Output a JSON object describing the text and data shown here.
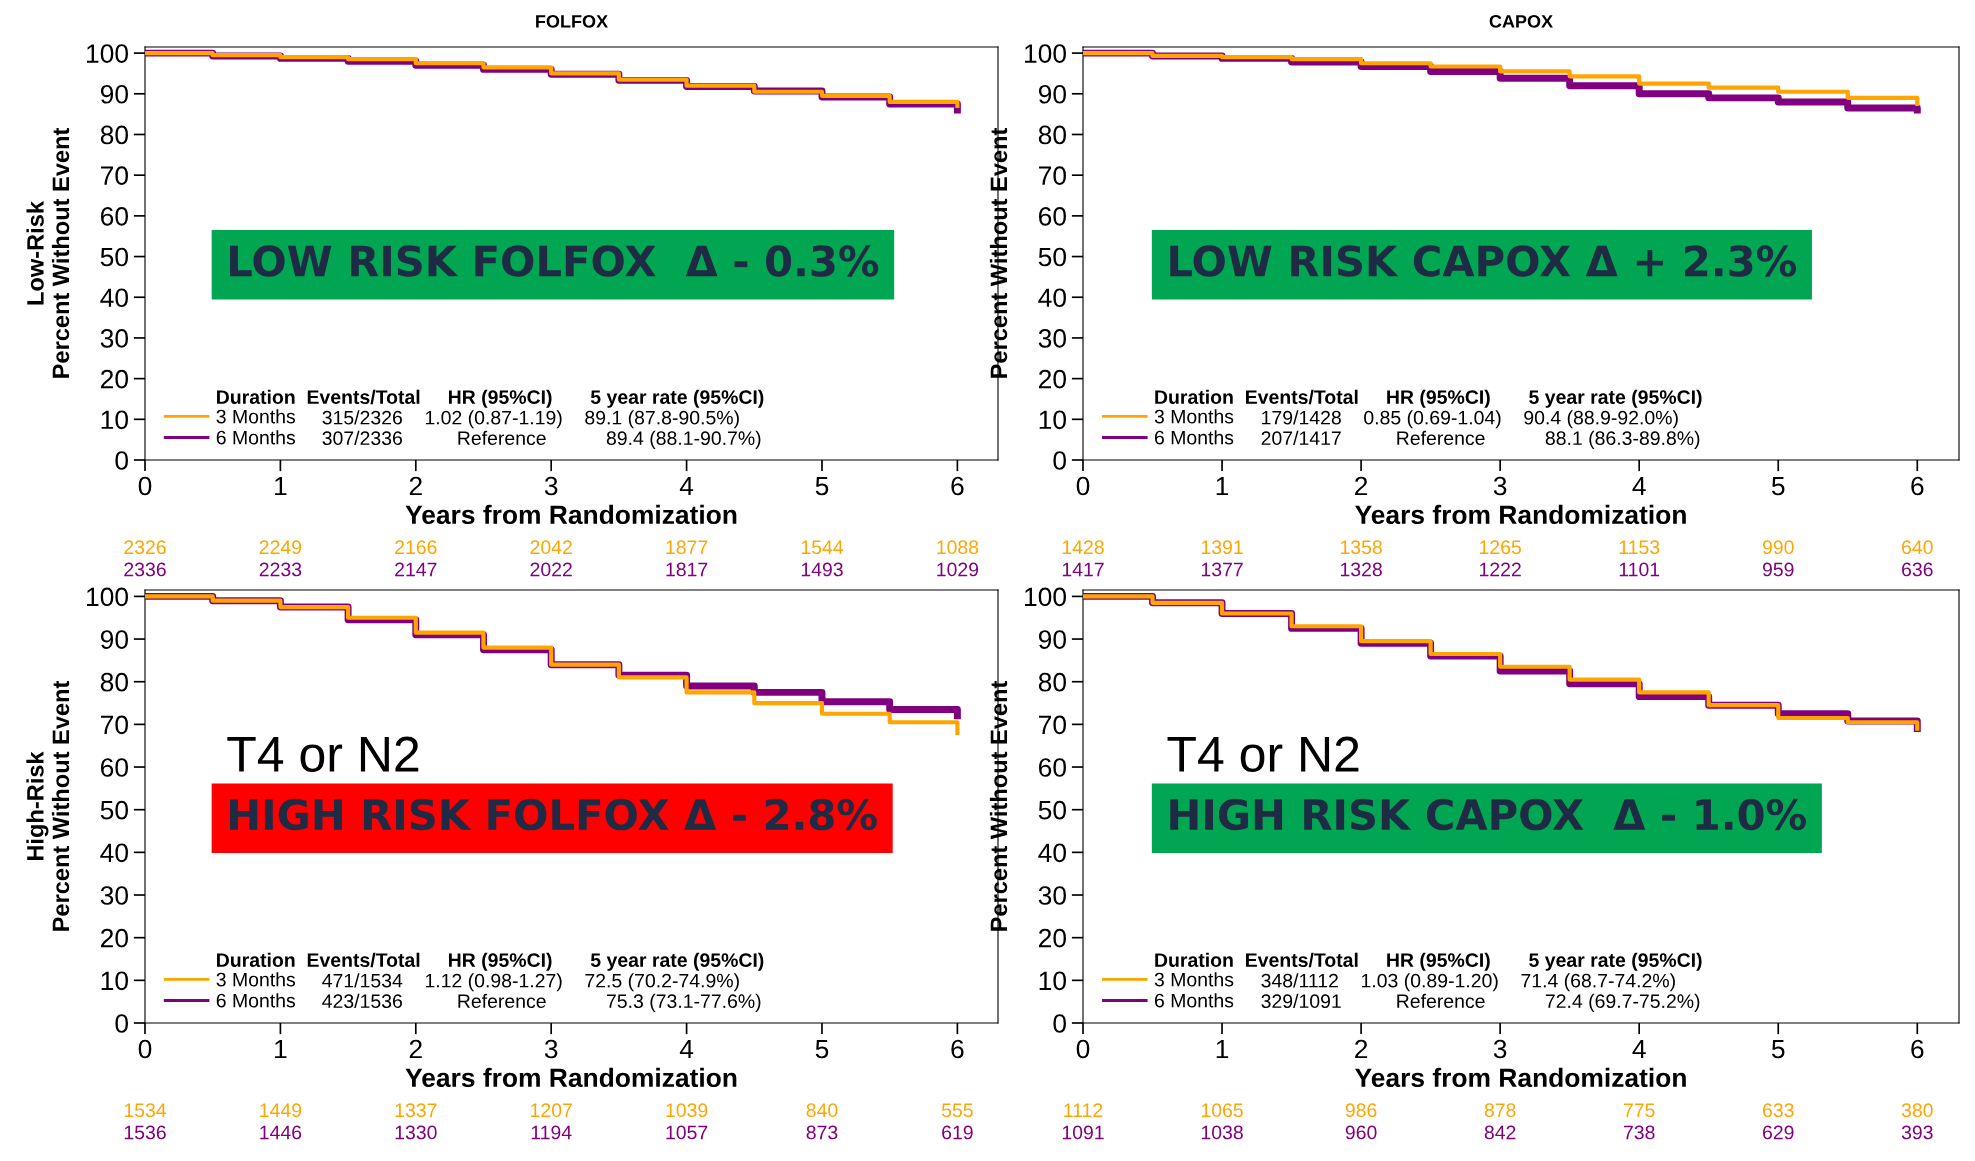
{
  "chart_data": [
    {
      "type": "step",
      "title": "FOLFOX",
      "ylabel": "Low-Risk\nPercent Without Event",
      "xlabel": "Years from Randomization",
      "x": [
        0,
        0.5,
        1,
        1.5,
        2,
        2.5,
        3,
        3.5,
        4,
        4.5,
        5,
        5.5,
        6
      ],
      "series": [
        {
          "name": "3 Months",
          "color": "#ffa500",
          "values": [
            100,
            99.5,
            99,
            98.5,
            97.5,
            96.5,
            95,
            93.5,
            92,
            90.5,
            89.5,
            88,
            87
          ]
        },
        {
          "name": "6 Months",
          "color": "#800080",
          "values": [
            100,
            99.3,
            98.7,
            98,
            97,
            96,
            94.8,
            93.3,
            91.8,
            90.7,
            89.2,
            87.5,
            86
          ]
        }
      ],
      "xlim": [
        0,
        6.3
      ],
      "xticks": [
        0,
        1,
        2,
        3,
        4,
        5,
        6
      ],
      "ylim": [
        0,
        101.5
      ],
      "yticks": [
        0,
        10,
        20,
        30,
        40,
        50,
        60,
        70,
        80,
        90,
        100
      ],
      "legend": "bottom left",
      "grid": false,
      "annotations": [
        "LOW RISK FOLFOX  Δ - 0.3%",
        "Duration  Events/Total     HR (95%CI)       5 year rate (95%CI)",
        "315/2326    1.02 (0.87-1.19)    89.1 (87.8-90.5%)",
        "307/2336          Reference           89.4 (88.1-90.7%)",
        "2326 2249 2166 2042 1877 1544 1088",
        "2336 2233 2147 2022 1817 1493 1029"
      ]
    },
    {
      "type": "step",
      "title": "CAPOX",
      "ylabel": "Percent Without Event",
      "x": [
        0,
        0.5,
        1,
        1.5,
        2,
        2.5,
        3,
        3.5,
        4,
        4.5,
        5,
        5.5,
        6
      ],
      "series": [
        {
          "name": "3 Months",
          "color": "#ffa500",
          "values": [
            100,
            99.3,
            99,
            98.5,
            97.5,
            96.7,
            95.5,
            94.3,
            92.5,
            91.5,
            90.5,
            89,
            87.5
          ]
        },
        {
          "name": "6 Months",
          "color": "#800080",
          "values": [
            100,
            99.3,
            98.7,
            97.8,
            96.7,
            95.5,
            93.8,
            92,
            90,
            89,
            88,
            86.5,
            86
          ]
        }
      ],
      "xlim": [
        0,
        6.3
      ],
      "xticks": [
        0,
        1,
        2,
        3,
        4,
        5,
        6
      ],
      "ylim": [
        0,
        101.5
      ],
      "yticks": [
        0,
        10,
        20,
        30,
        40,
        50,
        60,
        70,
        80,
        90,
        100
      ],
      "legend": "bottom left",
      "grid": false,
      "xlabel": "Years from Randomization",
      "annotations": [
        "LOW RISK CAPOX Δ + 2.3%",
        "Duration  Events/Total     HR (95%CI)       5 year rate (95%CI)",
        "179/1428    0.85 (0.69-1.04)    90.4 (88.9-92.0%)",
        "207/1417          Reference           88.1 (86.3-89.8%)",
        "1428 1391 1358 1265 1153 990 640",
        "1417 1377 1328 1222 1101 959 636"
      ]
    },
    {
      "type": "step",
      "ylabel": "High-Risk\nPercent Without Event",
      "xlabel": "Years from Randomization",
      "x": [
        0,
        0.5,
        1,
        1.5,
        2,
        2.5,
        3,
        3.5,
        4,
        4.5,
        5,
        5.5,
        6
      ],
      "series": [
        {
          "name": "3 Months",
          "color": "#ffa500",
          "values": [
            100,
            99,
            97.5,
            95,
            91.5,
            88,
            84,
            81,
            77.5,
            75,
            72.5,
            70.5,
            68
          ]
        },
        {
          "name": "6 Months",
          "color": "#800080",
          "values": [
            100,
            99,
            97.5,
            94.5,
            91,
            87.5,
            84,
            81.5,
            79,
            77.5,
            75.3,
            73.5,
            72
          ]
        }
      ],
      "xlim": [
        0,
        6.3
      ],
      "xticks": [
        0,
        1,
        2,
        3,
        4,
        5,
        6
      ],
      "ylim": [
        0,
        101.5
      ],
      "yticks": [
        0,
        10,
        20,
        30,
        40,
        50,
        60,
        70,
        80,
        90,
        100
      ],
      "legend": "bottom left",
      "grid": false,
      "annotations": [
        "HIGH RISK FOLFOX Δ - 2.8%",
        "Duration  Events/Total     HR (95%CI)       5 year rate (95%CI)",
        "471/1534    1.12 (0.98-1.27)    72.5 (70.2-74.9%)",
        "423/1536          Reference           75.3 (73.1-77.6%)",
        "1534 1449 1337 1207 1039 840 555",
        "1536 1446 1330 1194 1057 873 619",
        "T4 or N2"
      ]
    },
    {
      "type": "step",
      "ylabel": "Percent Without Event",
      "xlabel": "Years from Randomization",
      "x": [
        0,
        0.5,
        1,
        1.5,
        2,
        2.5,
        3,
        3.5,
        4,
        4.5,
        5,
        5.5,
        6
      ],
      "series": [
        {
          "name": "3 Months",
          "color": "#ffa500",
          "values": [
            100,
            98.5,
            96,
            93,
            89.5,
            86.5,
            83.5,
            80.5,
            77.5,
            74.5,
            71.5,
            70.5,
            69
          ]
        },
        {
          "name": "6 Months",
          "color": "#800080",
          "values": [
            100,
            98.5,
            96,
            92.5,
            89,
            86,
            82.5,
            79.5,
            76.5,
            74.5,
            72.5,
            70.8,
            69
          ]
        }
      ],
      "xlim": [
        0,
        6.3
      ],
      "xticks": [
        0,
        1,
        2,
        3,
        4,
        5,
        6
      ],
      "ylim": [
        0,
        101.5
      ],
      "yticks": [
        0,
        10,
        20,
        30,
        40,
        50,
        60,
        70,
        80,
        90,
        100
      ],
      "legend": "bottom left",
      "grid": false,
      "annotations": [
        "HIGH RISK CAPOX  Δ - 1.0%",
        "Duration  Events/Total     HR (95%CI)       5 year rate (95%CI)",
        "348/1112    1.03 (0.89-1.20)    71.4 (68.7-74.2%)",
        "329/1091          Reference           72.4 (69.7-75.2%)",
        "1112 1065 986 878 775 633 380",
        "1091 1038 960 842 738 629 393",
        "T4 or N2"
      ]
    }
  ]
}
